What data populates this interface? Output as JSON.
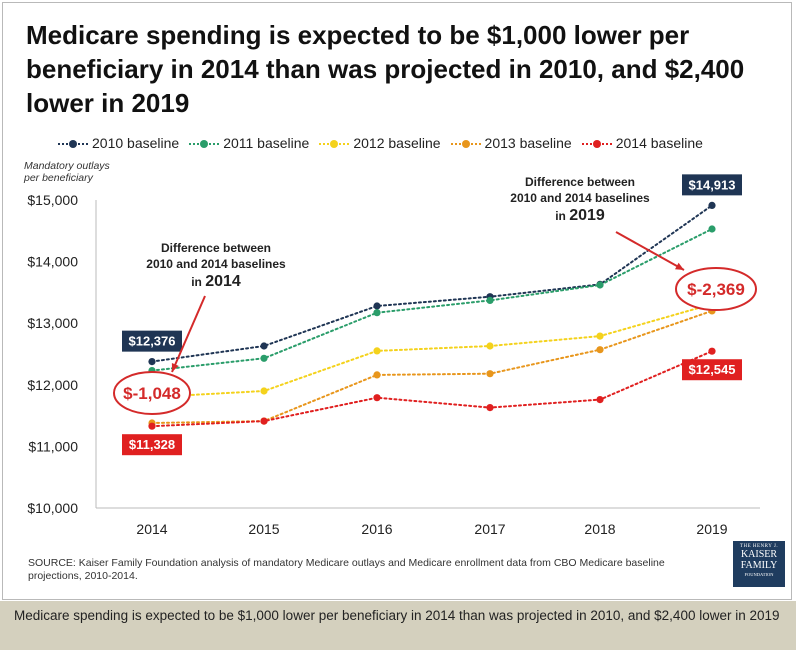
{
  "title": "Medicare spending is expected to be $1,000 lower per beneficiary in 2014 than was projected in 2010, and $2,400 lower in 2019",
  "source": "SOURCE: Kaiser Family Foundation analysis of mandatory Medicare outlays and Medicare enrollment data from CBO Medicare baseline projections, 2010-2014.",
  "caption": "Medicare spending is expected to be $1,000 lower per beneficiary in 2014 than was projected in 2010, and $2,400 lower in 2019",
  "logo": {
    "line1": "THE HENRY J.",
    "line2": "KAISER",
    "line3": "FAMILY",
    "line4": "FOUNDATION"
  },
  "chart_data": {
    "type": "line",
    "ylabel": "Mandatory outlays per beneficiary",
    "ylabel_lines": [
      "Mandatory outlays",
      "per beneficiary"
    ],
    "x": [
      "2014",
      "2015",
      "2016",
      "2017",
      "2018",
      "2019"
    ],
    "ylim": [
      10000,
      15000
    ],
    "yticks": [
      10000,
      11000,
      12000,
      13000,
      14000,
      15000
    ],
    "ytick_labels": [
      "$10,000",
      "$11,000",
      "$12,000",
      "$13,000",
      "$14,000",
      "$15,000"
    ],
    "grid": false,
    "legend_position": "top",
    "series": [
      {
        "name": "2010 baseline",
        "color": "#1f3554",
        "values": [
          12376,
          12630,
          13280,
          13430,
          13630,
          14913
        ]
      },
      {
        "name": "2011 baseline",
        "color": "#2a9d6a",
        "values": [
          12230,
          12430,
          13170,
          13370,
          13620,
          14530
        ]
      },
      {
        "name": "2012 baseline",
        "color": "#f4d21c",
        "values": [
          11800,
          11900,
          12550,
          12630,
          12790,
          13310
        ]
      },
      {
        "name": "2013 baseline",
        "color": "#e8961c",
        "values": [
          11380,
          11410,
          12160,
          12180,
          12570,
          13200
        ]
      },
      {
        "name": "2014 baseline",
        "color": "#e02020",
        "values": [
          11328,
          11410,
          11790,
          11630,
          11760,
          12545
        ]
      }
    ],
    "data_labels": [
      {
        "text": "$12,376",
        "x": "2014",
        "y": 12376,
        "color": "#1f3554",
        "position": "above"
      },
      {
        "text": "$11,328",
        "x": "2014",
        "y": 11328,
        "color": "#e02020",
        "position": "below"
      },
      {
        "text": "$14,913",
        "x": "2019",
        "y": 14913,
        "color": "#1f3554",
        "position": "above"
      },
      {
        "text": "$12,545",
        "x": "2019",
        "y": 12545,
        "color": "#e02020",
        "position": "below"
      }
    ],
    "annotations": [
      {
        "lines": [
          "Difference between",
          "2010 and 2014 baselines"
        ],
        "year_prefix": "in",
        "year": "2014",
        "value": "$-1,048"
      },
      {
        "lines": [
          "Difference between",
          "2010 and 2014 baselines"
        ],
        "year_prefix": "in",
        "year": "2019",
        "value": "$-2,369"
      }
    ]
  }
}
